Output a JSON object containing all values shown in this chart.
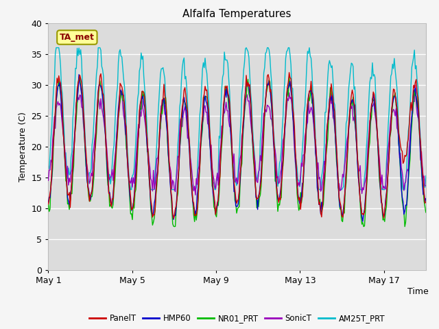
{
  "title": "Alfalfa Temperatures",
  "xlabel": "Time",
  "ylabel": "Temperature (C)",
  "ylim": [
    0,
    40
  ],
  "yticks": [
    0,
    5,
    10,
    15,
    20,
    25,
    30,
    35,
    40
  ],
  "annotation_text": "TA_met",
  "annotation_color": "#8B0000",
  "annotation_bg": "#FFFF99",
  "annotation_border": "#999900",
  "series_colors": {
    "PanelT": "#CC0000",
    "HMP60": "#0000CC",
    "NR01_PRT": "#00BB00",
    "SonicT": "#9900BB",
    "AM25T_PRT": "#00BBCC"
  },
  "xtick_labels": [
    "May 1",
    "May 5",
    "May 9",
    "May 13",
    "May 17"
  ],
  "xtick_positions": [
    0,
    4,
    8,
    12,
    16
  ],
  "n_days": 18,
  "bg_color": "#DCDCDC",
  "fig_bg": "#F5F5F5",
  "grid_color": "#FFFFFF"
}
